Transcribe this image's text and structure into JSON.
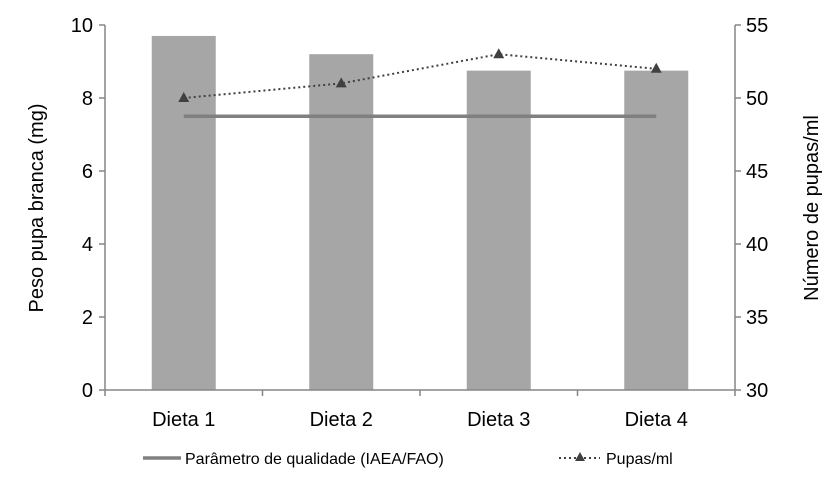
{
  "chart_data": {
    "type": "bar",
    "categories": [
      "Dieta 1",
      "Dieta 2",
      "Dieta 3",
      "Dieta 4"
    ],
    "series": [
      {
        "kind": "bar",
        "axis": "left",
        "values": [
          9.7,
          9.2,
          8.75,
          8.75
        ],
        "color": "#a6a6a6"
      },
      {
        "kind": "line",
        "axis": "left",
        "name": "Parâmetro de qualidade (IAEA/FAO)",
        "values": [
          7.5,
          7.5,
          7.5,
          7.5
        ],
        "color": "#808080",
        "style": "solid"
      },
      {
        "kind": "line",
        "axis": "right",
        "name": "Pupas/ml",
        "values": [
          50,
          51,
          53,
          52
        ],
        "color": "#404040",
        "style": "dotted",
        "marker": "triangle"
      }
    ],
    "ylabel_left": "Peso pupa branca (mg)",
    "ylabel_right": "Número de pupas/ml",
    "ylim_left": [
      0,
      10
    ],
    "ylim_right": [
      30,
      55
    ],
    "yticks_left": [
      "0",
      "2",
      "4",
      "6",
      "8",
      "10"
    ],
    "yticks_right": [
      "30",
      "35",
      "40",
      "45",
      "50",
      "55"
    ],
    "grid": false,
    "legend_position": "bottom"
  }
}
